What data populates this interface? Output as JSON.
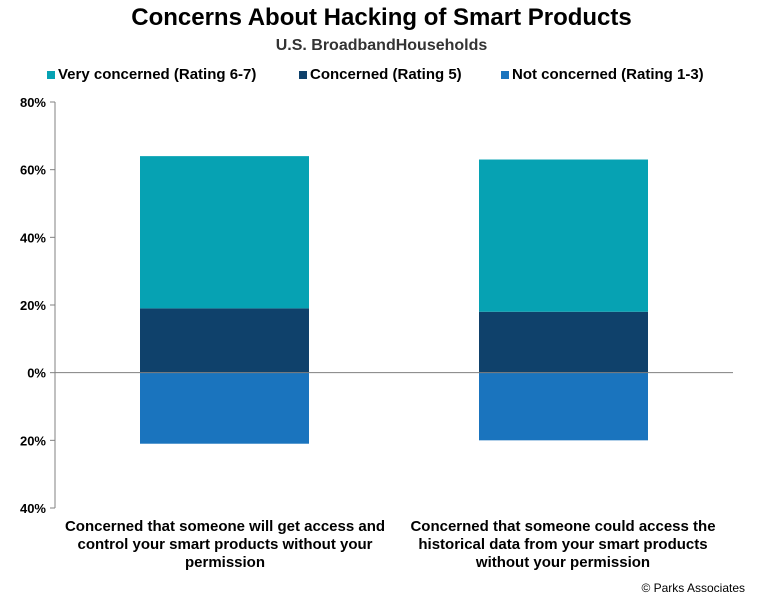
{
  "chart_data": {
    "type": "bar",
    "stacked": true,
    "title": "Concerns About Hacking of Smart Products",
    "subtitle": "U.S. BroadbandHouseholds",
    "categories": [
      "Concerned that someone will get access and control your smart products without your permission",
      "Concerned that someone could access the historical data from your smart products without your permission"
    ],
    "series": [
      {
        "name": "Very concerned (Rating 6-7)",
        "color": "#06A2B3",
        "values": [
          45,
          45
        ]
      },
      {
        "name": "Concerned (Rating 5)",
        "color": "#0F416B",
        "values": [
          19,
          18
        ]
      },
      {
        "name": "Not concerned (Rating 1-3)",
        "color": "#1A74BE",
        "values": [
          -21,
          -20
        ]
      }
    ],
    "ylim": [
      -40,
      80
    ],
    "yticks": [
      80,
      60,
      40,
      20,
      0,
      -20,
      -40
    ],
    "ytick_labels": [
      "80%",
      "60%",
      "40%",
      "20%",
      "0%",
      "20%",
      "40%"
    ],
    "legend_position": "top",
    "grid": false
  },
  "source": "© Parks Associates"
}
